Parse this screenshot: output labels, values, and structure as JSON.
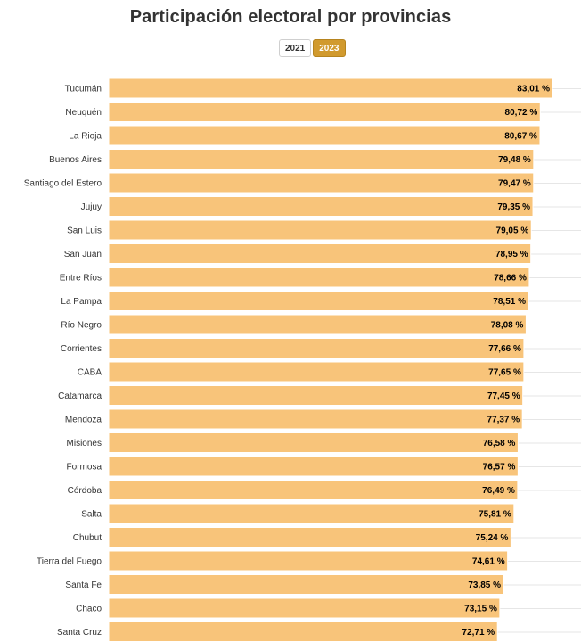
{
  "title": "Participación electoral por provincias",
  "years": {
    "y2021": "2021",
    "y2023": "2023",
    "selected": "2023"
  },
  "colors": {
    "bar": "#f8c47a",
    "bar_edge": "#ffffff",
    "grid": "#e6e6e6",
    "accent": "#d19a2e",
    "text": "#333333",
    "value_text": "#000000"
  },
  "chart_data": {
    "type": "bar",
    "orientation": "horizontal",
    "title": "Participación electoral por provincias",
    "xlabel": "",
    "ylabel": "",
    "xlim": [
      0,
      90
    ],
    "value_suffix": " %",
    "categories": [
      "Tucumán",
      "Neuquén",
      "La Rioja",
      "Buenos Aires",
      "Santiago del Estero",
      "Jujuy",
      "San Luis",
      "San Juan",
      "Entre Ríos",
      "La Pampa",
      "Río Negro",
      "Corrientes",
      "CABA",
      "Catamarca",
      "Mendoza",
      "Misiones",
      "Formosa",
      "Córdoba",
      "Salta",
      "Chubut",
      "Tierra del Fuego",
      "Santa Fe",
      "Chaco",
      "Santa Cruz"
    ],
    "values": [
      83.01,
      80.72,
      80.67,
      79.48,
      79.47,
      79.35,
      79.05,
      78.95,
      78.66,
      78.51,
      78.08,
      77.66,
      77.65,
      77.45,
      77.37,
      76.58,
      76.57,
      76.49,
      75.81,
      75.24,
      74.61,
      73.85,
      73.15,
      72.71
    ],
    "labels": [
      "83,01 %",
      "80,72 %",
      "80,67 %",
      "79,48 %",
      "79,47 %",
      "79,35 %",
      "79,05 %",
      "78,95 %",
      "78,66 %",
      "78,51 %",
      "78,08 %",
      "77,66 %",
      "77,65 %",
      "77,45 %",
      "77,37 %",
      "76,58 %",
      "76,57 %",
      "76,49 %",
      "75,81 %",
      "75,24 %",
      "74,61 %",
      "73,85 %",
      "73,15 %",
      "72,71 %"
    ]
  }
}
